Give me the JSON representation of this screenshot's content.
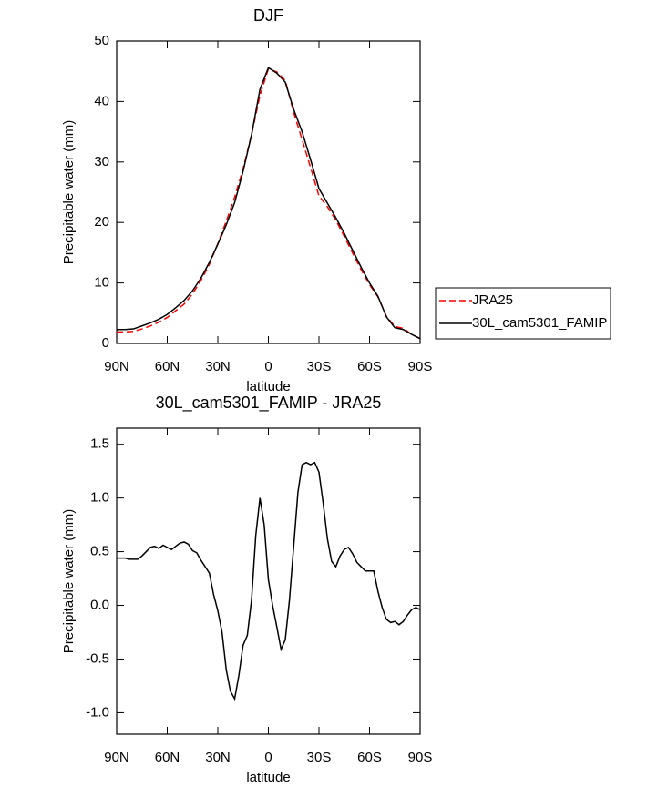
{
  "chart_data": [
    {
      "type": "line",
      "title": "DJF",
      "x_label": "latitude",
      "y_label": "Precipitable water (mm)",
      "x": [
        90,
        85,
        80,
        75,
        70,
        65,
        60,
        55,
        50,
        45,
        40,
        35,
        30,
        25,
        20,
        15,
        10,
        5,
        0,
        -5,
        -10,
        -15,
        -20,
        -25,
        -30,
        -35,
        -40,
        -45,
        -50,
        -55,
        -60,
        -65,
        -70,
        -75,
        -80,
        -85,
        -90
      ],
      "series": [
        {
          "name": "JRA25",
          "color": "#ff0000",
          "dashed": true,
          "values": [
            1.9,
            1.9,
            2.0,
            2.4,
            2.9,
            3.5,
            4.3,
            5.4,
            6.5,
            8.2,
            10.4,
            13.1,
            16.5,
            20.2,
            24.2,
            28.9,
            34.5,
            41.0,
            45.4,
            44.9,
            43.5,
            38.2,
            33.7,
            29.1,
            24.4,
            22.6,
            20.4,
            17.7,
            14.9,
            12.2,
            9.7,
            7.7,
            4.5,
            2.8,
            2.5,
            1.5,
            0.8
          ]
        },
        {
          "name": "30L_cam5301_FAMIP",
          "color": "#000000",
          "dashed": false,
          "values": [
            2.3,
            2.3,
            2.4,
            2.9,
            3.4,
            4.0,
            4.8,
            5.9,
            7.1,
            8.7,
            10.8,
            13.4,
            16.4,
            19.6,
            23.3,
            28.5,
            34.5,
            42.0,
            45.6,
            44.7,
            43.2,
            38.7,
            35.0,
            30.4,
            25.6,
            23.2,
            20.8,
            18.2,
            15.4,
            12.6,
            10.0,
            7.8,
            4.4,
            2.6,
            2.3,
            1.5,
            0.8
          ]
        }
      ],
      "xlim": [
        90,
        -90
      ],
      "xticks": [
        {
          "value": 90,
          "label": "90N"
        },
        {
          "value": 60,
          "label": "60N"
        },
        {
          "value": 30,
          "label": "30N"
        },
        0,
        {
          "value": -30,
          "label": "30S"
        },
        {
          "value": -60,
          "label": "60S"
        },
        {
          "value": -90,
          "label": "90S"
        }
      ],
      "ylim": [
        0,
        50
      ],
      "yticks": [
        0,
        10,
        20,
        30,
        40,
        50
      ],
      "legend": "outside-right"
    },
    {
      "type": "line",
      "title": "30L_cam5301_FAMIP - JRA25",
      "x_label": "latitude",
      "y_label": "Precipitable water (mm)",
      "x": [
        90,
        87.5,
        85,
        82.5,
        80,
        77.5,
        75,
        72.5,
        70,
        67.5,
        65,
        62.5,
        60,
        57.5,
        55,
        52.5,
        50,
        47.5,
        45,
        42.5,
        40,
        37.5,
        35,
        32.5,
        30,
        27.5,
        25,
        22.5,
        20,
        17.5,
        15,
        12.5,
        10,
        7.5,
        5,
        2.5,
        0,
        -2.5,
        -5,
        -7.5,
        -10,
        -12.5,
        -15,
        -17.5,
        -20,
        -22.5,
        -25,
        -27.5,
        -30,
        -32.5,
        -35,
        -37.5,
        -40,
        -42.5,
        -45,
        -47.5,
        -50,
        -52.5,
        -55,
        -57.5,
        -60,
        -62.5,
        -65,
        -67.5,
        -70,
        -72.5,
        -75,
        -77.5,
        -80,
        -82.5,
        -85,
        -87.5,
        -90
      ],
      "series": [
        {
          "color": "#000000",
          "dashed": false,
          "values": [
            0.44,
            0.44,
            0.44,
            0.43,
            0.43,
            0.43,
            0.46,
            0.5,
            0.54,
            0.55,
            0.53,
            0.56,
            0.54,
            0.52,
            0.55,
            0.58,
            0.59,
            0.57,
            0.51,
            0.49,
            0.42,
            0.36,
            0.3,
            0.1,
            -0.05,
            -0.25,
            -0.6,
            -0.8,
            -0.87,
            -0.65,
            -0.37,
            -0.28,
            0.05,
            0.65,
            1.0,
            0.75,
            0.24,
            0.0,
            -0.2,
            -0.41,
            -0.32,
            0.05,
            0.55,
            1.05,
            1.31,
            1.33,
            1.31,
            1.33,
            1.24,
            0.95,
            0.62,
            0.41,
            0.36,
            0.46,
            0.52,
            0.54,
            0.48,
            0.4,
            0.36,
            0.32,
            0.32,
            0.32,
            0.13,
            -0.02,
            -0.13,
            -0.16,
            -0.15,
            -0.18,
            -0.15,
            -0.09,
            -0.04,
            -0.02,
            -0.04
          ]
        }
      ],
      "xlim": [
        90,
        -90
      ],
      "xticks": [
        {
          "value": 90,
          "label": "90N"
        },
        {
          "value": 60,
          "label": "60N"
        },
        {
          "value": 30,
          "label": "30N"
        },
        0,
        {
          "value": -30,
          "label": "30S"
        },
        {
          "value": -60,
          "label": "60S"
        },
        {
          "value": -90,
          "label": "90S"
        }
      ],
      "ylim": [
        -1.2,
        1.65
      ],
      "yticks": [
        {
          "value": -1,
          "label": "-1.0"
        },
        -0.5,
        {
          "value": 0,
          "label": "0.0"
        },
        0.5,
        {
          "value": 1,
          "label": "1.0"
        },
        1.5
      ]
    }
  ]
}
